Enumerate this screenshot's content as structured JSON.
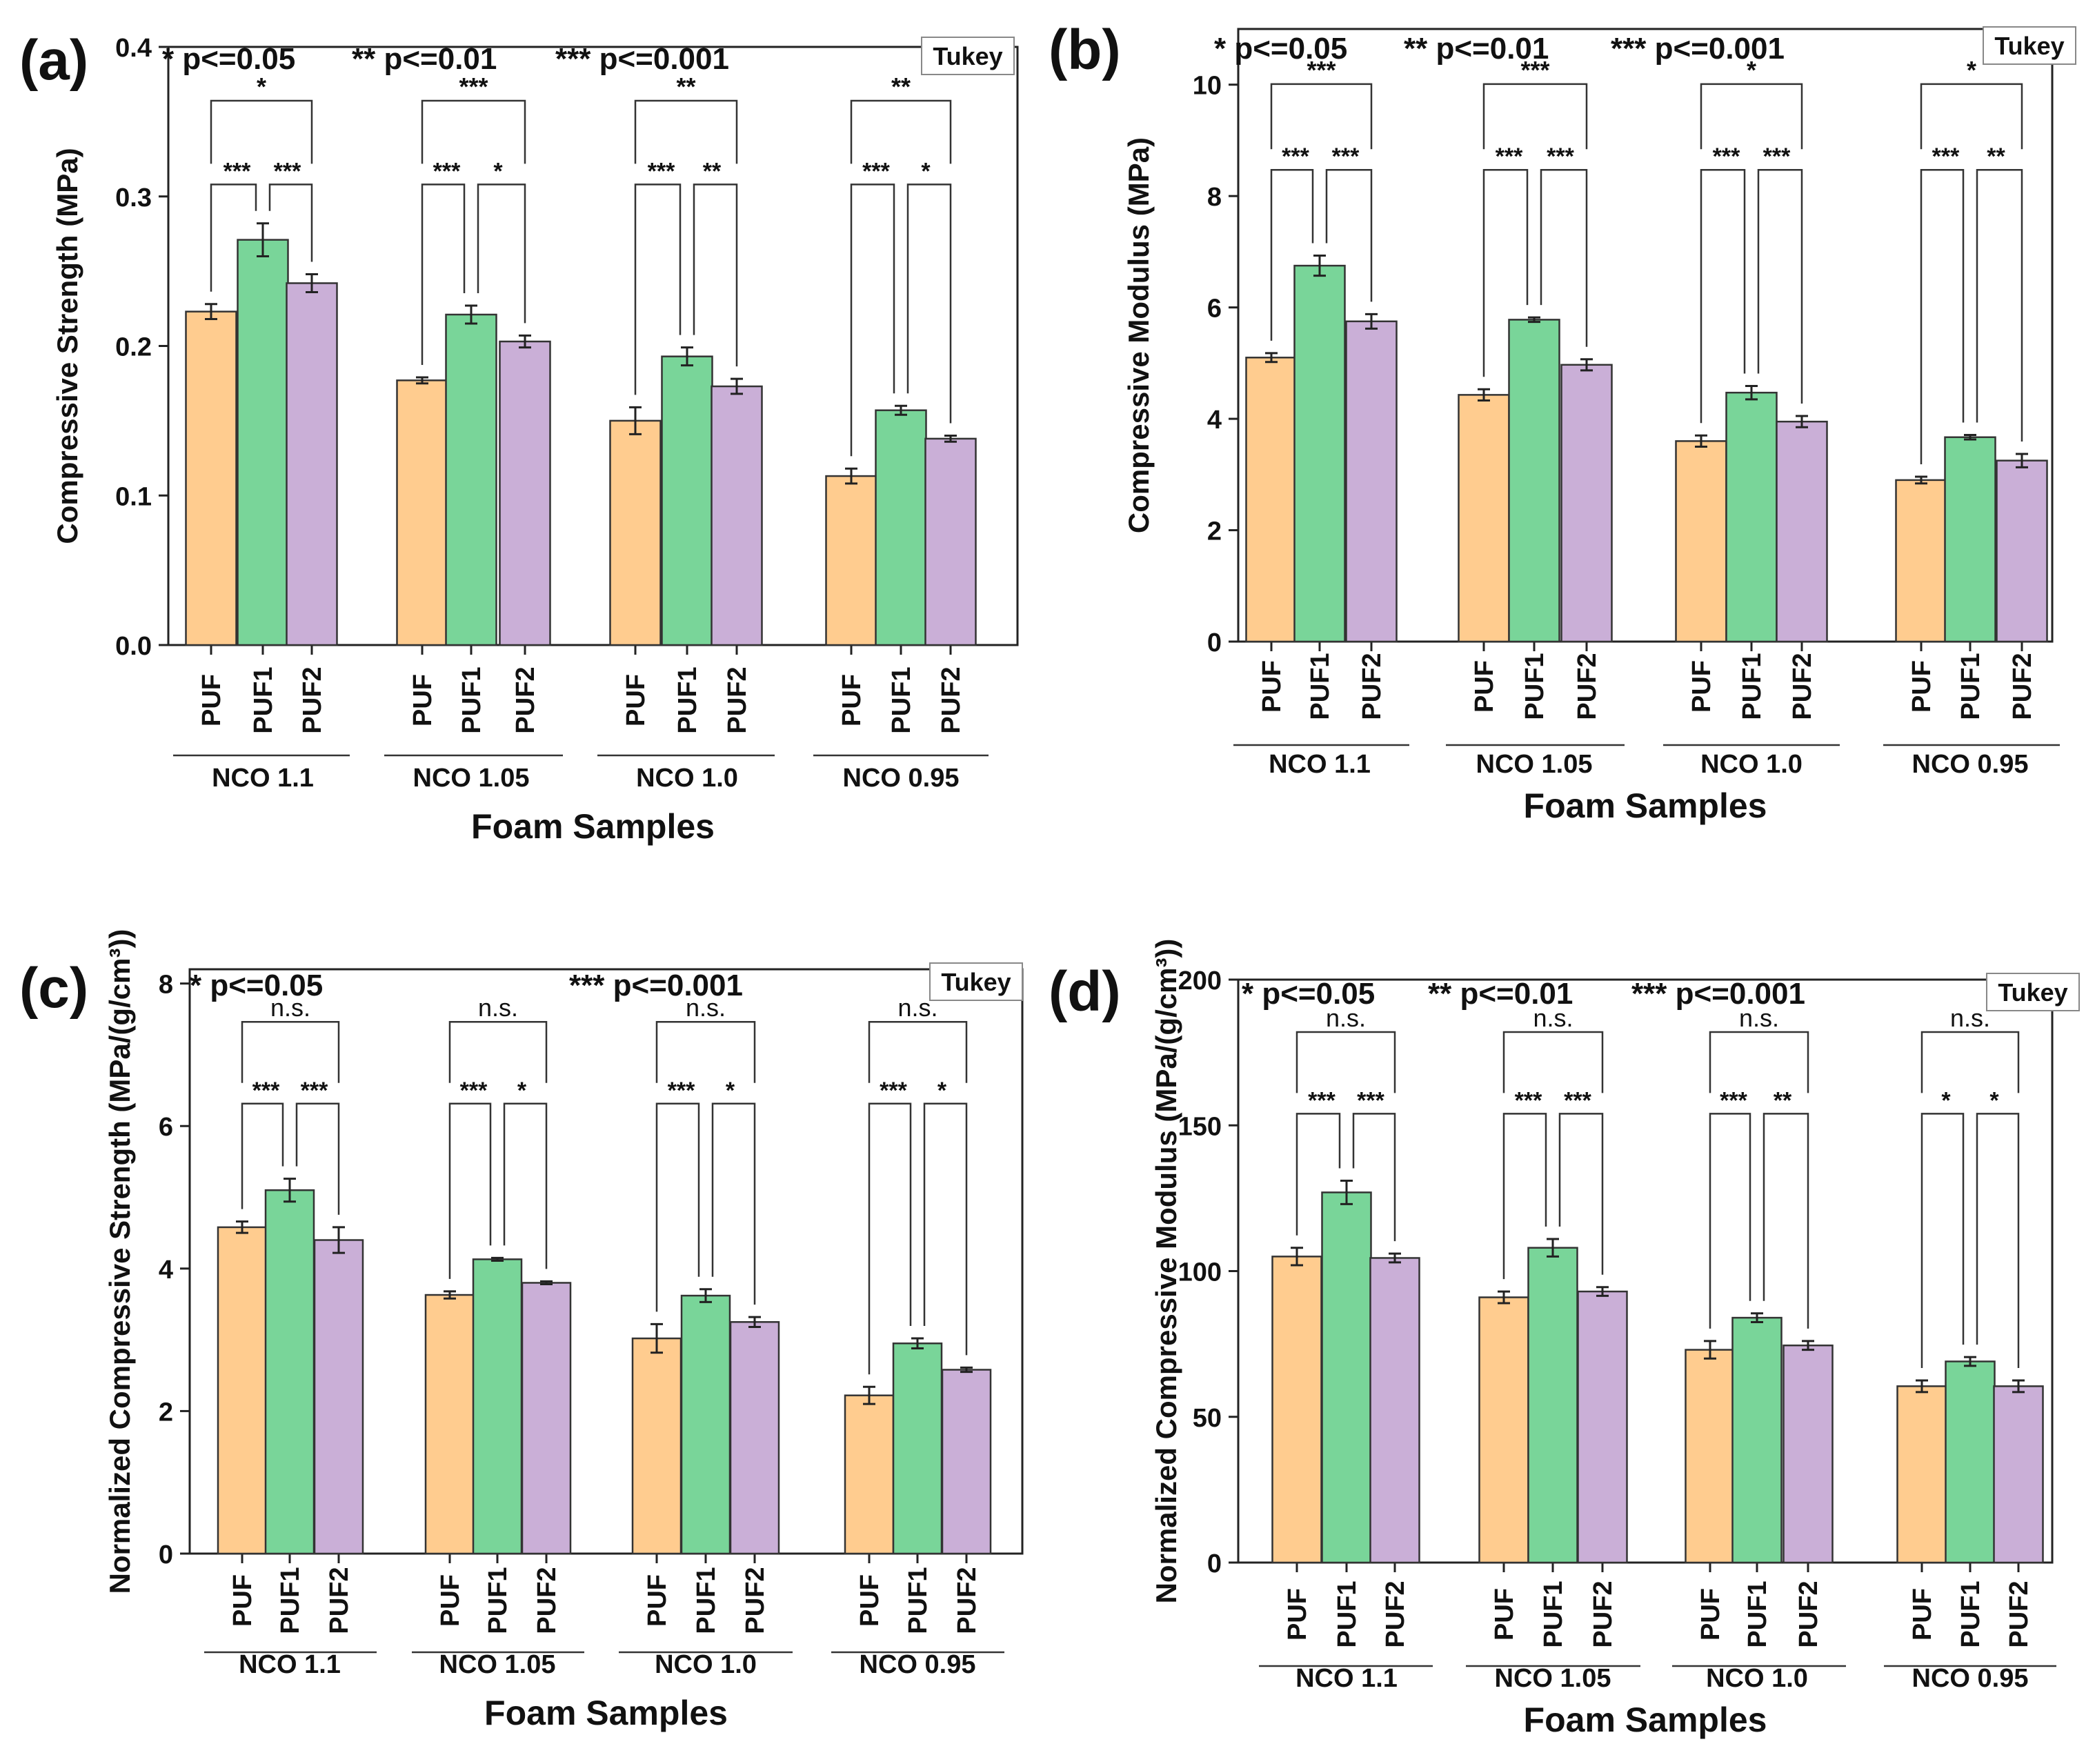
{
  "legend_colors": {
    "PUF": "#FFCC8F",
    "PUF1": "#79D599",
    "PUF2": "#CAAFD7"
  },
  "chart_data": [
    {
      "panel": "(a)",
      "type": "bar",
      "ylabel": "Compressive Strength (MPa)",
      "xlabel": "Foam Samples",
      "ylim": [
        0,
        0.4
      ],
      "yticks": [
        0.0,
        0.1,
        0.2,
        0.3,
        0.4
      ],
      "ytick_labels": [
        "0.0",
        "0.1",
        "0.2",
        "0.3",
        "0.4"
      ],
      "legend_text": [
        "* p<=0.05",
        "** p<=0.01",
        "*** p<=0.001"
      ],
      "test_label": "Tukey",
      "groups": [
        "NCO 1.1",
        "NCO 1.05",
        "NCO 1.0",
        "NCO 0.95"
      ],
      "bar_labels": [
        "PUF",
        "PUF1",
        "PUF2"
      ],
      "series": [
        {
          "name": "PUF",
          "values": [
            0.223,
            0.177,
            0.15,
            0.113
          ],
          "errors": [
            0.005,
            0.002,
            0.009,
            0.005
          ]
        },
        {
          "name": "PUF1",
          "values": [
            0.271,
            0.221,
            0.193,
            0.157
          ],
          "errors": [
            0.011,
            0.006,
            0.006,
            0.003
          ]
        },
        {
          "name": "PUF2",
          "values": [
            0.242,
            0.203,
            0.173,
            0.138
          ],
          "errors": [
            0.006,
            0.004,
            0.005,
            0.002
          ]
        }
      ],
      "significance": [
        {
          "wide": "*",
          "left": "***",
          "right": "***"
        },
        {
          "wide": "***",
          "left": "***",
          "right": "*"
        },
        {
          "wide": "**",
          "left": "***",
          "right": "**"
        },
        {
          "wide": "**",
          "left": "***",
          "right": "*"
        }
      ]
    },
    {
      "panel": "(b)",
      "type": "bar",
      "ylabel": "Compressive Modulus (MPa)",
      "xlabel": "Foam Samples",
      "ylim": [
        0,
        11
      ],
      "yticks": [
        0,
        2,
        4,
        6,
        8,
        10
      ],
      "ytick_labels": [
        "0",
        "2",
        "4",
        "6",
        "8",
        "10"
      ],
      "legend_text": [
        "* p<=0.05",
        "** p<=0.01",
        "*** p<=0.001"
      ],
      "test_label": "Tukey",
      "groups": [
        "NCO 1.1",
        "NCO 1.05",
        "NCO 1.0",
        "NCO 0.95"
      ],
      "bar_labels": [
        "PUF",
        "PUF1",
        "PUF2"
      ],
      "series": [
        {
          "name": "PUF",
          "values": [
            5.1,
            4.43,
            3.6,
            2.9
          ],
          "errors": [
            0.08,
            0.1,
            0.1,
            0.06
          ]
        },
        {
          "name": "PUF1",
          "values": [
            6.75,
            5.78,
            4.47,
            3.67
          ],
          "errors": [
            0.18,
            0.04,
            0.12,
            0.04
          ]
        },
        {
          "name": "PUF2",
          "values": [
            5.75,
            4.97,
            3.95,
            3.25
          ],
          "errors": [
            0.13,
            0.1,
            0.1,
            0.12
          ]
        }
      ],
      "significance": [
        {
          "wide": "***",
          "left": "***",
          "right": "***"
        },
        {
          "wide": "***",
          "left": "***",
          "right": "***"
        },
        {
          "wide": "*",
          "left": "***",
          "right": "***"
        },
        {
          "wide": "*",
          "left": "***",
          "right": "**"
        }
      ]
    },
    {
      "panel": "(c)",
      "type": "bar",
      "ylabel": "Normalized Compressive Strength (MPa/(g/cm³))",
      "xlabel": "Foam Samples",
      "ylim": [
        0,
        8.2
      ],
      "yticks": [
        0,
        2,
        4,
        6,
        8
      ],
      "ytick_labels": [
        "0",
        "2",
        "4",
        "6",
        "8"
      ],
      "legend_text": [
        "* p<=0.05",
        "*** p<=0.001"
      ],
      "test_label": "Tukey",
      "groups": [
        "NCO 1.1",
        "NCO 1.05",
        "NCO 1.0",
        "NCO 0.95"
      ],
      "bar_labels": [
        "PUF",
        "PUF1",
        "PUF2"
      ],
      "series": [
        {
          "name": "PUF",
          "values": [
            4.58,
            3.63,
            3.02,
            2.22
          ],
          "errors": [
            0.08,
            0.05,
            0.2,
            0.12
          ]
        },
        {
          "name": "PUF1",
          "values": [
            5.1,
            4.13,
            3.62,
            2.95
          ],
          "errors": [
            0.16,
            0.02,
            0.09,
            0.07
          ]
        },
        {
          "name": "PUF2",
          "values": [
            4.4,
            3.8,
            3.25,
            2.58
          ],
          "errors": [
            0.18,
            0.02,
            0.07,
            0.03
          ]
        }
      ],
      "significance": [
        {
          "wide": "n.s.",
          "left": "***",
          "right": "***"
        },
        {
          "wide": "n.s.",
          "left": "***",
          "right": "*"
        },
        {
          "wide": "n.s.",
          "left": "***",
          "right": "*"
        },
        {
          "wide": "n.s.",
          "left": "***",
          "right": "*"
        }
      ]
    },
    {
      "panel": "(d)",
      "type": "bar",
      "ylabel": "Normalized Compressive Modulus (MPa/(g/cm³))",
      "xlabel": "Foam Samples",
      "ylim": [
        0,
        200
      ],
      "yticks": [
        0,
        50,
        100,
        150,
        200
      ],
      "ytick_labels": [
        "0",
        "50",
        "100",
        "150",
        "200"
      ],
      "legend_text": [
        "* p<=0.05",
        "** p<=0.01",
        "*** p<=0.001"
      ],
      "test_label": "Tukey",
      "groups": [
        "NCO 1.1",
        "NCO 1.05",
        "NCO 1.0",
        "NCO 0.95"
      ],
      "bar_labels": [
        "PUF",
        "PUF1",
        "PUF2"
      ],
      "series": [
        {
          "name": "PUF",
          "values": [
            105,
            91,
            73,
            60.5
          ],
          "errors": [
            3.0,
            2.0,
            3.0,
            2.0
          ]
        },
        {
          "name": "PUF1",
          "values": [
            127,
            108,
            84,
            69
          ],
          "errors": [
            4.0,
            3.0,
            1.5,
            1.5
          ]
        },
        {
          "name": "PUF2",
          "values": [
            104.5,
            93,
            74.5,
            60.5
          ],
          "errors": [
            1.5,
            1.5,
            1.5,
            2.0
          ]
        }
      ],
      "significance": [
        {
          "wide": "n.s.",
          "left": "***",
          "right": "***"
        },
        {
          "wide": "n.s.",
          "left": "***",
          "right": "***"
        },
        {
          "wide": "n.s.",
          "left": "***",
          "right": "**"
        },
        {
          "wide": "n.s.",
          "left": "*",
          "right": "*"
        }
      ]
    }
  ]
}
